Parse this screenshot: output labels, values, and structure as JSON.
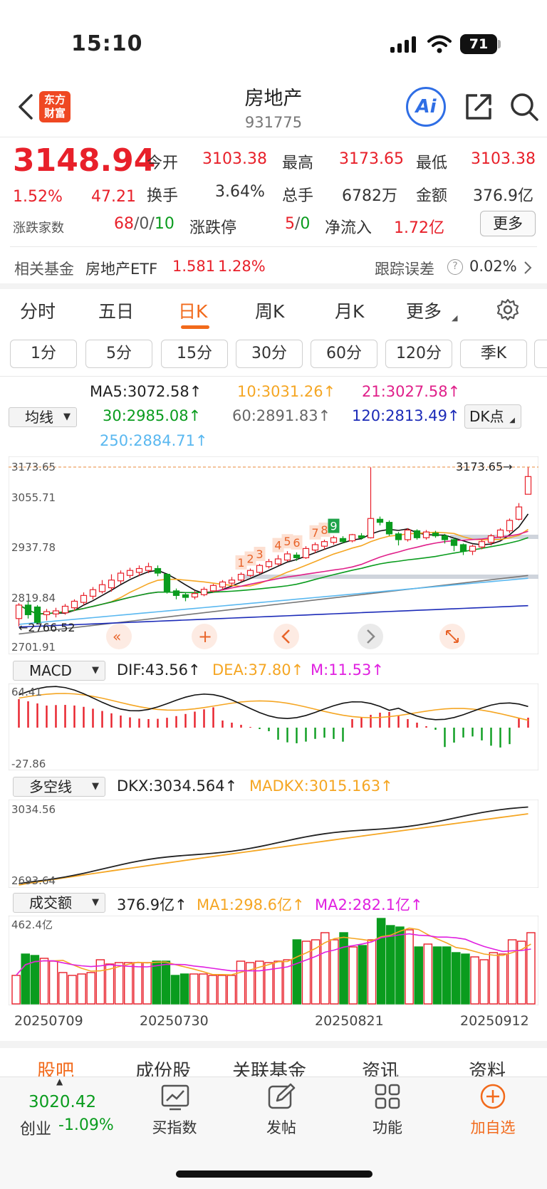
{
  "status": {
    "time": "15:10",
    "battery": "71"
  },
  "header": {
    "title": "房地产",
    "code": "931775",
    "logo_line1": "东方",
    "logo_line2": "财富",
    "ai_label": "Ai"
  },
  "quote": {
    "price": "3148.94",
    "change_pct": "1.52%",
    "change": "47.21",
    "open_label": "今开",
    "open": "3103.38",
    "high_label": "最高",
    "high": "3173.65",
    "low_label": "最低",
    "low": "3103.38",
    "turnover_label": "换手",
    "turnover": "3.64%",
    "volume_label": "总手",
    "volume": "6782万",
    "amount_label": "金额",
    "amount": "376.9亿",
    "breadth_label": "涨跌家数",
    "up": "68",
    "flat": "0",
    "down": "10",
    "limit_label": "涨跌停",
    "limit_up": "5",
    "limit_down": "0",
    "inflow_label": "净流入",
    "inflow": "1.72亿",
    "more": "更多"
  },
  "fund": {
    "label": "相关基金",
    "name": "房地产ETF",
    "price": "1.581",
    "pct": "1.28%",
    "err_label": "跟踪误差",
    "err": "0.02%"
  },
  "tabs": [
    "分时",
    "五日",
    "日K",
    "周K",
    "月K",
    "更多"
  ],
  "periods": [
    "1分",
    "5分",
    "15分",
    "30分",
    "60分",
    "120分",
    "季K"
  ],
  "ma_legend": {
    "selector": "均线",
    "ma5": "MA5:3072.58↑",
    "ma10": "10:3031.26↑",
    "ma21": "21:3027.58↑",
    "ma30": "30:2985.08↑",
    "ma60": "60:2891.83↑",
    "ma120": "120:2813.49↑",
    "ma250": "250:2884.71↑",
    "dk": "DK点"
  },
  "kline": {
    "axis": [
      "3173.65",
      "3055.71",
      "2937.78",
      "2819.84",
      "2701.91"
    ],
    "high_marker": "3173.65→",
    "low_marker": "←2766.52",
    "signals": [
      "1",
      "2",
      "3",
      "4",
      "5",
      "6",
      "7",
      "8",
      "9"
    ]
  },
  "macd": {
    "selector": "MACD",
    "dif": "DIF:43.56↑",
    "dea": "DEA:37.80↑",
    "m": "M:11.53↑",
    "top": "64.41",
    "bottom": "-27.86"
  },
  "dkx": {
    "selector": "多空线",
    "dkx": "DKX:3034.564↑",
    "madkx": "MADKX:3015.163↑",
    "top": "3034.56",
    "bottom": "2693.64"
  },
  "vol": {
    "selector": "成交额",
    "value": "376.9亿↑",
    "ma1": "MA1:298.6亿↑",
    "ma2": "MA2:282.1亿↑",
    "top": "462.4亿"
  },
  "dates": [
    "20250709",
    "20250730",
    "20250821",
    "20250912"
  ],
  "bottom_tabs": [
    "股吧",
    "成份股",
    "关联基金",
    "资讯",
    "资料"
  ],
  "market": {
    "index": "3020.42",
    "name": "创业",
    "pct": "-1.09%"
  },
  "nav": [
    "买指数",
    "发帖",
    "功能",
    "加自选"
  ],
  "colors": {
    "up": "#e8202a",
    "down": "#0a9c1e",
    "accent": "#f26a1b"
  },
  "chart_data": {
    "type": "candlestick",
    "ylim": [
      2701.91,
      3173.65
    ],
    "candles": [
      [
        2780,
        2815,
        2760,
        2820
      ],
      [
        2815,
        2790,
        2780,
        2825
      ],
      [
        2810,
        2770,
        2765,
        2815
      ],
      [
        2790,
        2798,
        2775,
        2805
      ],
      [
        2792,
        2800,
        2783,
        2808
      ],
      [
        2795,
        2812,
        2790,
        2818
      ],
      [
        2808,
        2825,
        2800,
        2830
      ],
      [
        2822,
        2840,
        2815,
        2848
      ],
      [
        2838,
        2855,
        2830,
        2862
      ],
      [
        2850,
        2868,
        2845,
        2880
      ],
      [
        2860,
        2880,
        2850,
        2895
      ],
      [
        2878,
        2898,
        2870,
        2905
      ],
      [
        2892,
        2905,
        2885,
        2912
      ],
      [
        2900,
        2910,
        2890,
        2918
      ],
      [
        2905,
        2915,
        2898,
        2925
      ],
      [
        2910,
        2898,
        2890,
        2918
      ],
      [
        2895,
        2850,
        2845,
        2898
      ],
      [
        2852,
        2840,
        2830,
        2858
      ],
      [
        2842,
        2835,
        2825,
        2848
      ],
      [
        2836,
        2845,
        2830,
        2852
      ],
      [
        2842,
        2856,
        2838,
        2862
      ],
      [
        2852,
        2866,
        2848,
        2870
      ],
      [
        2862,
        2875,
        2855,
        2880
      ],
      [
        2872,
        2880,
        2865,
        2888
      ],
      [
        2880,
        2895,
        2875,
        2900
      ],
      [
        2892,
        2905,
        2888,
        2910
      ],
      [
        2900,
        2918,
        2895,
        2922
      ],
      [
        2915,
        2928,
        2910,
        2935
      ],
      [
        2922,
        2935,
        2918,
        2945
      ],
      [
        2932,
        2948,
        2928,
        2955
      ],
      [
        2945,
        2938,
        2930,
        2952
      ],
      [
        2938,
        2962,
        2935,
        2968
      ],
      [
        2958,
        2972,
        2950,
        2978
      ],
      [
        2968,
        2980,
        2960,
        2985
      ],
      [
        2978,
        2990,
        2972,
        2995
      ],
      [
        2988,
        2980,
        2975,
        2994
      ],
      [
        2982,
        2998,
        2978,
        3000
      ],
      [
        2995,
        2990,
        2985,
        3002
      ],
      [
        2990,
        3040,
        2988,
        3173
      ],
      [
        3038,
        3030,
        3022,
        3045
      ],
      [
        3030,
        3000,
        2995,
        3035
      ],
      [
        3000,
        2985,
        2970,
        3005
      ],
      [
        2985,
        3010,
        2980,
        3015
      ],
      [
        3008,
        2990,
        2985,
        3012
      ],
      [
        2990,
        3005,
        2985,
        3010
      ],
      [
        3002,
        2995,
        2990,
        3008
      ],
      [
        2995,
        2985,
        2975,
        3000
      ],
      [
        2985,
        2970,
        2955,
        2990
      ],
      [
        2972,
        2955,
        2945,
        2975
      ],
      [
        2955,
        2968,
        2945,
        2972
      ],
      [
        2966,
        2980,
        2960,
        2985
      ],
      [
        2978,
        2995,
        2970,
        3000
      ],
      [
        2992,
        3010,
        2988,
        3015
      ],
      [
        3008,
        3035,
        3002,
        3040
      ],
      [
        3038,
        3070,
        3035,
        3080
      ],
      [
        3103,
        3149,
        3103,
        3173
      ]
    ]
  }
}
